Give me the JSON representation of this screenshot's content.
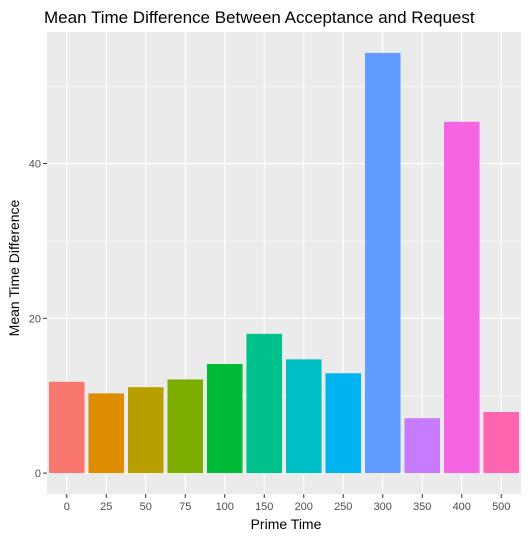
{
  "chart_data": {
    "type": "bar",
    "title": "Mean Time Difference Between Acceptance and Request",
    "xlabel": "Prime Time",
    "ylabel": "Mean Time Difference",
    "categories": [
      "0",
      "25",
      "50",
      "75",
      "100",
      "150",
      "200",
      "250",
      "300",
      "350",
      "400",
      "500"
    ],
    "values": [
      11.8,
      10.3,
      11.1,
      12.1,
      14.1,
      18.0,
      14.7,
      12.9,
      54.3,
      7.1,
      45.4,
      7.9
    ],
    "colors": [
      "#F8766D",
      "#DE8C00",
      "#B79F00",
      "#7CAE00",
      "#00BA38",
      "#00C08B",
      "#00BFC4",
      "#00B4F0",
      "#619CFF",
      "#C77CFF",
      "#F564E3",
      "#FF64B0"
    ],
    "y_ticks": [
      0,
      20,
      40
    ],
    "ylim": [
      -2.7,
      57.0
    ],
    "grid": true,
    "legend": "none",
    "panel_background": "#EBEBEB",
    "grid_color": "#FFFFFF"
  }
}
